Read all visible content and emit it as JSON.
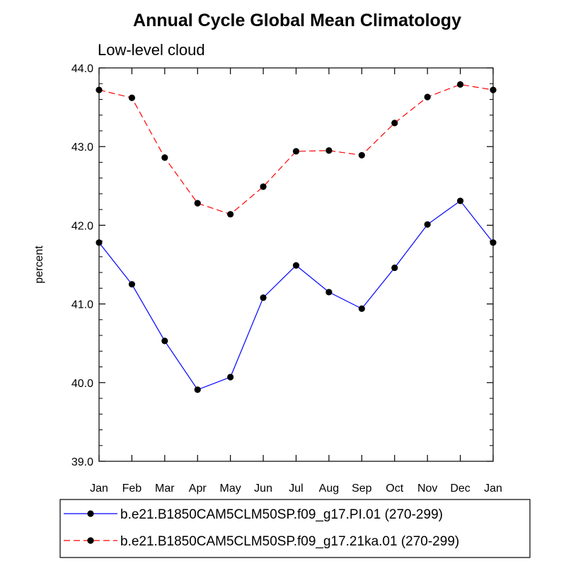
{
  "chart_data": {
    "type": "line",
    "title": "Annual Cycle Global Mean Climatology",
    "subtitle": "Low-level cloud",
    "xlabel": "",
    "ylabel": "percent",
    "categories": [
      "Jan",
      "Feb",
      "Mar",
      "Apr",
      "May",
      "Jun",
      "Jul",
      "Aug",
      "Sep",
      "Oct",
      "Nov",
      "Dec",
      "Jan"
    ],
    "ylim": [
      39.0,
      44.0
    ],
    "yticks": [
      "39.0",
      "40.0",
      "41.0",
      "42.0",
      "43.0",
      "44.0"
    ],
    "grid": false,
    "legend_position": "bottom",
    "series": [
      {
        "name": "b.e21.B1850CAM5CLM50SP.f09_g17.PI.01 (270-299)",
        "color": "#0000ff",
        "dash": "solid",
        "values": [
          41.78,
          41.25,
          40.53,
          39.91,
          40.07,
          41.08,
          41.49,
          41.15,
          40.94,
          41.46,
          42.01,
          42.31,
          41.78
        ]
      },
      {
        "name": "b.e21.B1850CAM5CLM50SP.f09_g17.21ka.01 (270-299)",
        "color": "#ff0000",
        "dash": "dashed",
        "values": [
          43.72,
          43.62,
          42.86,
          42.28,
          42.14,
          42.49,
          42.94,
          42.95,
          42.89,
          43.3,
          43.63,
          43.79,
          43.72
        ]
      }
    ]
  }
}
